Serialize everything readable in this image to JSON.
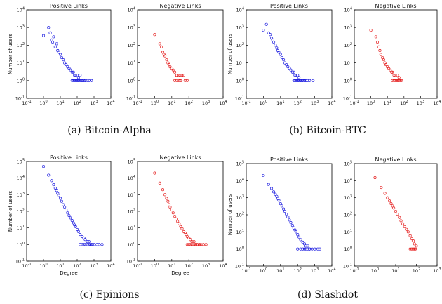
{
  "figure": {
    "captions": [
      "(a)  Bitcoin-Alpha",
      "(b)  Bitcoin-BTC",
      "(c)  Epinions",
      "(d)  Slashdot"
    ]
  },
  "chart_data": [
    {
      "type": "scatter",
      "group": "(a)  Bitcoin-Alpha",
      "title": "Positive Links",
      "xlabel": "",
      "ylabel": "Number of users",
      "xscale": "log",
      "yscale": "log",
      "xlim": [
        0.1,
        10000
      ],
      "ylim": [
        0.1,
        10000
      ],
      "xticks": [
        "10^-1",
        "10^0",
        "10^1",
        "10^2",
        "10^3",
        "10^4"
      ],
      "yticks": [
        "10^-1",
        "10^0",
        "10^1",
        "10^2",
        "10^3",
        "10^4"
      ],
      "marker": "hollow-circle",
      "color": "#1f1fe0",
      "series": [
        {
          "x": [
            1,
            2,
            2.5,
            3,
            3.5,
            4,
            5,
            6,
            7,
            8,
            10,
            12,
            15,
            18,
            22,
            27,
            33,
            40,
            50,
            60,
            70,
            80,
            100,
            120,
            150,
            200,
            250,
            300,
            400,
            500,
            700,
            50,
            60,
            70,
            80,
            90,
            100,
            110,
            120,
            140,
            160,
            180,
            200,
            250,
            300
          ],
          "y": [
            350,
            1000,
            500,
            200,
            150,
            300,
            80,
            120,
            50,
            40,
            30,
            20,
            15,
            10,
            8,
            6,
            5,
            4,
            3,
            3,
            2,
            2,
            2,
            1.5,
            2,
            1,
            1,
            1,
            1,
            1,
            1,
            1,
            1,
            1,
            1,
            1,
            1,
            1,
            1,
            1,
            1,
            1,
            1,
            1,
            1
          ]
        }
      ]
    },
    {
      "type": "scatter",
      "group": "(a)  Bitcoin-Alpha",
      "title": "Negative Links",
      "xlabel": "",
      "ylabel": "",
      "xscale": "log",
      "yscale": "log",
      "xlim": [
        0.1,
        10000
      ],
      "ylim": [
        0.1,
        10000
      ],
      "xticks": [
        "10^-1",
        "10^0",
        "10^1",
        "10^2",
        "10^3",
        "10^4"
      ],
      "yticks": [
        "10^-1",
        "10^0",
        "10^1",
        "10^2",
        "10^3",
        "10^4"
      ],
      "marker": "hollow-circle",
      "color": "#e52020",
      "series": [
        {
          "x": [
            1,
            2,
            2.5,
            3,
            3.5,
            4,
            5,
            6,
            7,
            8,
            10,
            12,
            15,
            18,
            20,
            25,
            30,
            40,
            50,
            60,
            80,
            15,
            20,
            25,
            30,
            35
          ],
          "y": [
            400,
            120,
            80,
            40,
            30,
            25,
            15,
            10,
            8,
            6,
            5,
            4,
            3,
            2,
            2,
            2,
            2,
            2,
            2,
            1,
            1,
            1,
            1,
            1,
            1,
            1
          ]
        }
      ]
    },
    {
      "type": "scatter",
      "group": "(b)  Bitcoin-BTC",
      "title": "Positive Links",
      "xlabel": "",
      "ylabel": "Number of users",
      "xscale": "log",
      "yscale": "log",
      "xlim": [
        0.1,
        10000
      ],
      "ylim": [
        0.1,
        10000
      ],
      "xticks": [
        "10^-1",
        "10^0",
        "10^1",
        "10^2",
        "10^3",
        "10^4"
      ],
      "yticks": [
        "10^-1",
        "10^0",
        "10^1",
        "10^2",
        "10^3",
        "10^4"
      ],
      "marker": "hollow-circle",
      "color": "#1f1fe0",
      "series": [
        {
          "x": [
            1,
            1.5,
            2,
            2.5,
            3,
            3.5,
            4,
            5,
            6,
            7,
            8,
            10,
            12,
            15,
            18,
            22,
            27,
            33,
            40,
            50,
            60,
            70,
            80,
            100,
            120,
            150,
            200,
            250,
            300,
            500,
            800,
            60,
            70,
            80,
            90,
            100,
            110,
            120,
            140,
            160,
            180,
            200,
            250,
            300,
            400
          ],
          "y": [
            700,
            1500,
            500,
            400,
            250,
            200,
            150,
            100,
            70,
            50,
            40,
            30,
            20,
            15,
            10,
            8,
            6,
            5,
            4,
            3,
            3,
            2,
            2,
            2,
            1.5,
            1,
            1,
            1,
            1,
            1,
            1,
            1,
            1,
            1,
            1,
            1,
            1,
            1,
            1,
            1,
            1,
            1,
            1,
            1,
            1
          ]
        }
      ]
    },
    {
      "type": "scatter",
      "group": "(b)  Bitcoin-BTC",
      "title": "Negative Links",
      "xlabel": "",
      "ylabel": "",
      "xscale": "log",
      "yscale": "log",
      "xlim": [
        0.1,
        10000
      ],
      "ylim": [
        0.1,
        10000
      ],
      "xticks": [
        "10^-1",
        "10^0",
        "10^1",
        "10^2",
        "10^3",
        "10^4"
      ],
      "yticks": [
        "10^-1",
        "10^0",
        "10^1",
        "10^2",
        "10^3",
        "10^4"
      ],
      "marker": "hollow-circle",
      "color": "#e52020",
      "series": [
        {
          "x": [
            1,
            2,
            2.5,
            3,
            3.5,
            4,
            5,
            6,
            7,
            8,
            10,
            12,
            15,
            18,
            20,
            25,
            30,
            40,
            50,
            60,
            70,
            20,
            25,
            30,
            35,
            40,
            45,
            50
          ],
          "y": [
            700,
            300,
            150,
            80,
            50,
            30,
            20,
            15,
            10,
            8,
            6,
            5,
            4,
            3,
            3,
            2,
            2,
            2,
            1.5,
            1,
            1,
            1,
            1,
            1,
            1,
            1,
            1,
            1
          ]
        }
      ]
    },
    {
      "type": "scatter",
      "group": "(c)  Epinions",
      "title": "Positive Links",
      "xlabel": "Degree",
      "ylabel": "Number of users",
      "xscale": "log",
      "yscale": "log",
      "xlim": [
        0.1,
        10000
      ],
      "ylim": [
        0.1,
        100000
      ],
      "xticks": [
        "10^-1",
        "10^0",
        "10^1",
        "10^2",
        "10^3",
        "10^4"
      ],
      "yticks": [
        "10^-1",
        "10^0",
        "10^1",
        "10^2",
        "10^3",
        "10^4",
        "10^5"
      ],
      "marker": "hollow-circle",
      "color": "#1f1fe0",
      "series": [
        {
          "x": [
            1,
            2,
            3,
            4,
            5,
            6,
            7,
            8,
            10,
            12,
            15,
            18,
            22,
            27,
            33,
            40,
            50,
            60,
            70,
            80,
            100,
            120,
            150,
            200,
            250,
            300,
            400,
            500,
            700,
            1000,
            1500,
            2000,
            3000,
            150,
            200,
            250,
            300,
            400,
            500,
            600,
            700,
            800
          ],
          "y": [
            50000,
            15000,
            7000,
            4000,
            2500,
            1800,
            1200,
            900,
            600,
            400,
            250,
            180,
            120,
            80,
            55,
            40,
            28,
            20,
            15,
            12,
            8,
            6,
            4,
            3,
            2.5,
            2,
            1.5,
            1.5,
            1,
            1,
            1,
            1,
            1,
            1,
            1,
            1,
            1,
            1,
            1,
            1,
            1,
            1
          ]
        }
      ]
    },
    {
      "type": "scatter",
      "group": "(c)  Epinions",
      "title": "Negative Links",
      "xlabel": "Degree",
      "ylabel": "",
      "xscale": "log",
      "yscale": "log",
      "xlim": [
        0.1,
        10000
      ],
      "ylim": [
        0.1,
        100000
      ],
      "xticks": [
        "10^-1",
        "10^0",
        "10^1",
        "10^2",
        "10^3",
        "10^4"
      ],
      "yticks": [
        "10^-1",
        "10^0",
        "10^1",
        "10^2",
        "10^3",
        "10^4",
        "10^5"
      ],
      "marker": "hollow-circle",
      "color": "#e52020",
      "series": [
        {
          "x": [
            1,
            2,
            3,
            4,
            5,
            6,
            7,
            8,
            10,
            12,
            15,
            18,
            22,
            27,
            33,
            40,
            50,
            60,
            70,
            80,
            100,
            120,
            150,
            200,
            250,
            300,
            400,
            500,
            700,
            1000,
            80,
            100,
            120,
            150,
            200,
            250,
            300,
            400
          ],
          "y": [
            20000,
            5000,
            2000,
            1000,
            600,
            400,
            250,
            180,
            120,
            80,
            50,
            35,
            25,
            18,
            12,
            9,
            6,
            5,
            4,
            3,
            2.5,
            2,
            1.5,
            1.5,
            1,
            1,
            1,
            1,
            1,
            1,
            1,
            1,
            1,
            1,
            1,
            1,
            1,
            1
          ]
        }
      ]
    },
    {
      "type": "scatter",
      "group": "(d)  Slashdot",
      "title": "Positive Links",
      "xlabel": "",
      "ylabel": "Number of users",
      "xscale": "log",
      "yscale": "log",
      "xlim": [
        0.1,
        10000
      ],
      "ylim": [
        0.1,
        100000
      ],
      "xticks": [
        "10^-1",
        "10^0",
        "10^1",
        "10^2",
        "10^3",
        "10^4"
      ],
      "yticks": [
        "10^-1",
        "10^0",
        "10^1",
        "10^2",
        "10^3",
        "10^4",
        "10^5"
      ],
      "marker": "hollow-circle",
      "color": "#1f1fe0",
      "series": [
        {
          "x": [
            1,
            2,
            3,
            4,
            5,
            6,
            7,
            8,
            10,
            12,
            15,
            18,
            22,
            27,
            33,
            40,
            50,
            60,
            70,
            80,
            100,
            120,
            150,
            200,
            250,
            300,
            400,
            500,
            700,
            1000,
            1500,
            2000,
            100,
            150,
            200,
            250,
            300,
            400,
            500
          ],
          "y": [
            20000,
            6000,
            3500,
            2200,
            1600,
            1200,
            900,
            700,
            450,
            330,
            220,
            160,
            110,
            75,
            50,
            35,
            24,
            17,
            13,
            10,
            7,
            5,
            3.5,
            2.5,
            2,
            1.5,
            1.5,
            1,
            1,
            1,
            1,
            1,
            1,
            1,
            1,
            1,
            1,
            1,
            1
          ]
        }
      ]
    },
    {
      "type": "scatter",
      "group": "(d)  Slashdot",
      "title": "Negative Links",
      "xlabel": "",
      "ylabel": "",
      "xscale": "log",
      "yscale": "log",
      "xlim": [
        0.1,
        1000
      ],
      "ylim": [
        0.1,
        100000
      ],
      "xticks": [
        "10^-1",
        "10^0",
        "10^1",
        "10^2",
        "10^3"
      ],
      "yticks": [
        "10^-1",
        "10^0",
        "10^1",
        "10^2",
        "10^3",
        "10^4",
        "10^5"
      ],
      "marker": "hollow-circle",
      "color": "#e52020",
      "series": [
        {
          "x": [
            1,
            2,
            3,
            4,
            5,
            6,
            7,
            8,
            10,
            12,
            15,
            18,
            22,
            27,
            33,
            40,
            50,
            60,
            70,
            80,
            100,
            50,
            60,
            70,
            80,
            90
          ],
          "y": [
            15000,
            4000,
            1800,
            1000,
            650,
            450,
            330,
            250,
            160,
            110,
            70,
            45,
            30,
            20,
            14,
            10,
            6,
            4,
            3,
            2,
            1.5,
            1,
            1,
            1,
            1,
            1
          ]
        }
      ]
    }
  ]
}
